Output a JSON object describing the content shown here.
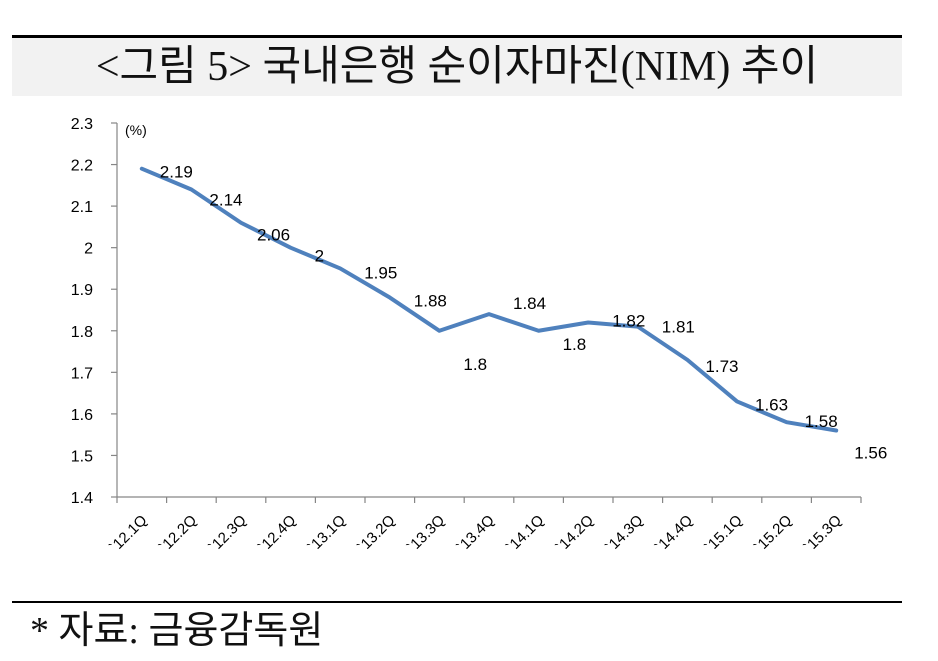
{
  "title": "<그림 5> 국내은행 순이자마진(NIM) 추이",
  "source": "* 자료: 금융감독원",
  "chart_data": {
    "type": "line",
    "title": "<그림 5> 국내은행 순이자마진(NIM) 추이",
    "unit_label": "(%)",
    "categories": [
      "`12.1Q",
      "`12.2Q",
      "`12.3Q",
      "`12.4Q",
      "`13.1Q",
      "`13.2Q",
      "`13.3Q",
      "`13.4Q",
      "`14.1Q",
      "`14.2Q",
      "`14.3Q",
      "`14.4Q",
      "`15.1Q",
      "`15.2Q",
      "`15.3Q"
    ],
    "series": [
      {
        "values": [
          2.19,
          2.14,
          2.06,
          2,
          1.95,
          1.88,
          1.8,
          1.84,
          1.8,
          1.82,
          1.81,
          1.73,
          1.63,
          1.58,
          1.56
        ],
        "color": "#4f81bd"
      }
    ],
    "data_labels": [
      "2.19",
      "2.14",
      "2.06",
      "2",
      "1.95",
      "1.88",
      "1.8",
      "1.84",
      "1.8",
      "1.82",
      "1.81",
      "1.73",
      "1.63",
      "1.58",
      "1.56"
    ],
    "ylim": [
      1.4,
      2.3
    ],
    "yticks": [
      "1.4",
      "1.5",
      "1.6",
      "1.7",
      "1.8",
      "1.9",
      "2",
      "2.1",
      "2.2",
      "2.3"
    ],
    "grid": false,
    "legend": "none"
  }
}
